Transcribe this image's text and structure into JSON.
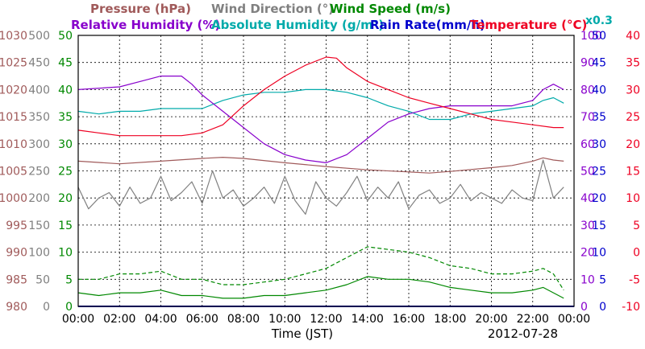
{
  "chart_data": {
    "type": "line",
    "xlabel": "Time (JST)",
    "date": "2012-07-28",
    "x_ticks": [
      "00:00",
      "02:00",
      "04:00",
      "06:00",
      "08:00",
      "10:00",
      "12:00",
      "14:00",
      "16:00",
      "18:00",
      "20:00",
      "22:00",
      "00:00"
    ],
    "xlim_hours": [
      0,
      24
    ],
    "grid": true,
    "legend": {
      "row1": [
        {
          "key": "pressure",
          "label": "Pressure (hPa)",
          "color": "#a05a5a"
        },
        {
          "key": "wind_dir",
          "label": "Wind Direction (°)",
          "color": "#808080"
        },
        {
          "key": "wind_speed",
          "label": "Wind Speed (m/s)",
          "color": "#008800"
        }
      ],
      "row2": [
        {
          "key": "rh",
          "label": "Relative Humidity (%)",
          "color": "#8800cc"
        },
        {
          "key": "ah",
          "label": "Absolute Humidity (g/m³)",
          "color": "#00aaaa"
        },
        {
          "key": "rain",
          "label": "Rain Rate(mm/h)",
          "color": "#0000cc"
        },
        {
          "key": "temp",
          "label": "Temperature (°C)",
          "color": "#ee0022"
        }
      ],
      "scale_note": {
        "label": "x0.3",
        "color": "#00aaaa"
      }
    },
    "axes": {
      "pressure": {
        "side": "left",
        "color": "#a05a5a",
        "ylim": [
          980,
          1030
        ],
        "ticks": [
          "980",
          "985",
          "990",
          "995",
          "1000",
          "1005",
          "1010",
          "1015",
          "1020",
          "1025",
          "1030"
        ]
      },
      "wind_dir": {
        "side": "left",
        "color": "#808080",
        "ylim": [
          0,
          500
        ],
        "ticks": [
          "0",
          "50",
          "100",
          "150",
          "200",
          "250",
          "300",
          "350",
          "400",
          "450",
          "500"
        ]
      },
      "wind_speed": {
        "side": "left",
        "color": "#008800",
        "ylim": [
          0,
          50
        ],
        "ticks": [
          "0",
          "5",
          "10",
          "15",
          "20",
          "25",
          "30",
          "35",
          "40",
          "45",
          "50"
        ]
      },
      "rh": {
        "side": "right",
        "color": "#8800cc",
        "ylim": [
          0,
          100
        ],
        "ticks": [
          "0",
          "10",
          "20",
          "30",
          "40",
          "50",
          "60",
          "70",
          "80",
          "90",
          "100"
        ]
      },
      "rain": {
        "side": "right",
        "color": "#0000cc",
        "ylim": [
          0,
          50
        ],
        "ticks": [
          "0",
          "5",
          "10",
          "15",
          "20",
          "25",
          "30",
          "35",
          "40",
          "45",
          "50"
        ]
      },
      "temp": {
        "side": "right",
        "color": "#ee0022",
        "ylim": [
          -10,
          40
        ],
        "ticks": [
          "-10",
          "-5",
          "0",
          "5",
          "10",
          "15",
          "20",
          "25",
          "30",
          "35",
          "40"
        ]
      }
    },
    "series": [
      {
        "key": "temp",
        "name": "Temperature (°C)",
        "axis": "temp",
        "color": "#ee0022",
        "x": [
          0,
          1,
          2,
          3,
          4,
          5,
          6,
          7,
          8,
          9,
          10,
          11,
          12,
          12.5,
          13,
          14,
          15,
          16,
          17,
          18,
          19,
          20,
          21,
          22,
          23,
          23.5
        ],
        "y": [
          22.5,
          22,
          21.5,
          21.5,
          21.5,
          21.5,
          22,
          23.5,
          27,
          30,
          32.5,
          34.5,
          36,
          35.8,
          34,
          31.5,
          30,
          28.5,
          27.5,
          26.5,
          25.5,
          24.5,
          24,
          23.5,
          23,
          23
        ]
      },
      {
        "key": "rh",
        "name": "Relative Humidity (%)",
        "axis": "rh",
        "color": "#8800cc",
        "x": [
          0,
          2,
          3,
          4,
          5,
          5.5,
          6,
          7,
          8,
          9,
          10,
          11,
          12,
          13,
          14,
          15,
          16,
          17,
          18,
          19,
          20,
          21,
          22,
          22.5,
          23,
          23.5
        ],
        "y": [
          80,
          81,
          83,
          85,
          85,
          82,
          78,
          72,
          66,
          60,
          56,
          54,
          53,
          56,
          62,
          68,
          71,
          73,
          74,
          74,
          74,
          74,
          76,
          80,
          82,
          80
        ]
      },
      {
        "key": "ah",
        "name": "Absolute Humidity (g/m³)",
        "axis": "rh",
        "color": "#00aaaa",
        "x": [
          0,
          1,
          2,
          3,
          4,
          5,
          6,
          7,
          8,
          9,
          10,
          11,
          12,
          13,
          14,
          15,
          16,
          17,
          18,
          19,
          20,
          21,
          22,
          22.5,
          23,
          23.5
        ],
        "y": [
          72,
          71,
          72,
          72,
          73,
          73,
          73,
          76,
          78,
          79,
          79,
          80,
          80,
          79,
          77,
          74,
          72,
          69,
          69,
          71,
          72,
          73,
          74,
          76,
          77,
          75
        ]
      },
      {
        "key": "pressure",
        "name": "Pressure (hPa)",
        "axis": "pressure",
        "color": "#a05a5a",
        "x": [
          0,
          2,
          4,
          6,
          7,
          8,
          10,
          12,
          14,
          16,
          17,
          18,
          20,
          21,
          22,
          22.5,
          23,
          23.5
        ],
        "y": [
          1006.8,
          1006.3,
          1006.8,
          1007.3,
          1007.5,
          1007.3,
          1006.5,
          1005.8,
          1005.2,
          1004.8,
          1004.6,
          1004.9,
          1005.6,
          1006.0,
          1006.8,
          1007.4,
          1007.0,
          1006.8
        ]
      },
      {
        "key": "wind_dir",
        "name": "Wind Direction (°)",
        "axis": "wind_dir",
        "color": "#808080",
        "x": [
          0,
          0.5,
          1,
          1.5,
          2,
          2.5,
          3,
          3.5,
          4,
          4.5,
          5,
          5.5,
          6,
          6.5,
          7,
          7.5,
          8,
          8.5,
          9,
          9.5,
          10,
          10.5,
          11,
          11.5,
          12,
          12.5,
          13,
          13.5,
          14,
          14.5,
          15,
          15.5,
          16,
          16.5,
          17,
          17.5,
          18,
          18.5,
          19,
          19.5,
          20,
          20.5,
          21,
          21.5,
          22,
          22.5,
          23,
          23.5
        ],
        "y": [
          220,
          180,
          200,
          210,
          185,
          220,
          190,
          200,
          240,
          195,
          210,
          230,
          190,
          250,
          200,
          215,
          185,
          200,
          220,
          190,
          240,
          195,
          170,
          230,
          200,
          185,
          210,
          240,
          195,
          220,
          200,
          230,
          180,
          205,
          215,
          190,
          200,
          225,
          195,
          210,
          200,
          190,
          215,
          200,
          195,
          270,
          200,
          220
        ]
      },
      {
        "key": "wind_speed",
        "name": "Wind Speed (m/s)",
        "axis": "wind_speed",
        "color": "#008800",
        "x": [
          0,
          1,
          2,
          3,
          4,
          5,
          6,
          7,
          8,
          9,
          10,
          11,
          12,
          13,
          14,
          15,
          16,
          17,
          18,
          19,
          20,
          21,
          22,
          22.5,
          23,
          23.5
        ],
        "y": [
          2.5,
          2,
          2.5,
          2.5,
          3,
          2,
          2,
          1.5,
          1.5,
          2,
          2,
          2.5,
          3,
          4,
          5.5,
          5,
          5,
          4.5,
          3.5,
          3,
          2.5,
          2.5,
          3,
          3.5,
          2.5,
          1.5
        ]
      },
      {
        "key": "wind_gust",
        "name": "",
        "axis": "wind_speed",
        "color": "#008800",
        "dashed": true,
        "x": [
          0,
          1,
          2,
          3,
          4,
          5,
          6,
          7,
          8,
          9,
          10,
          11,
          12,
          13,
          14,
          15,
          16,
          17,
          18,
          19,
          20,
          21,
          22,
          22.5,
          23,
          23.5
        ],
        "y": [
          5,
          5,
          6,
          6,
          6.5,
          5,
          5,
          4,
          4,
          4.5,
          5,
          6,
          7,
          9,
          11,
          10.5,
          10,
          9,
          7.5,
          7,
          6,
          6,
          6.5,
          7,
          6,
          3
        ]
      },
      {
        "key": "rain",
        "name": "Rain Rate(mm/h)",
        "axis": "rain",
        "color": "#0000cc",
        "x": [
          0,
          24
        ],
        "y": [
          0,
          0
        ]
      }
    ]
  }
}
